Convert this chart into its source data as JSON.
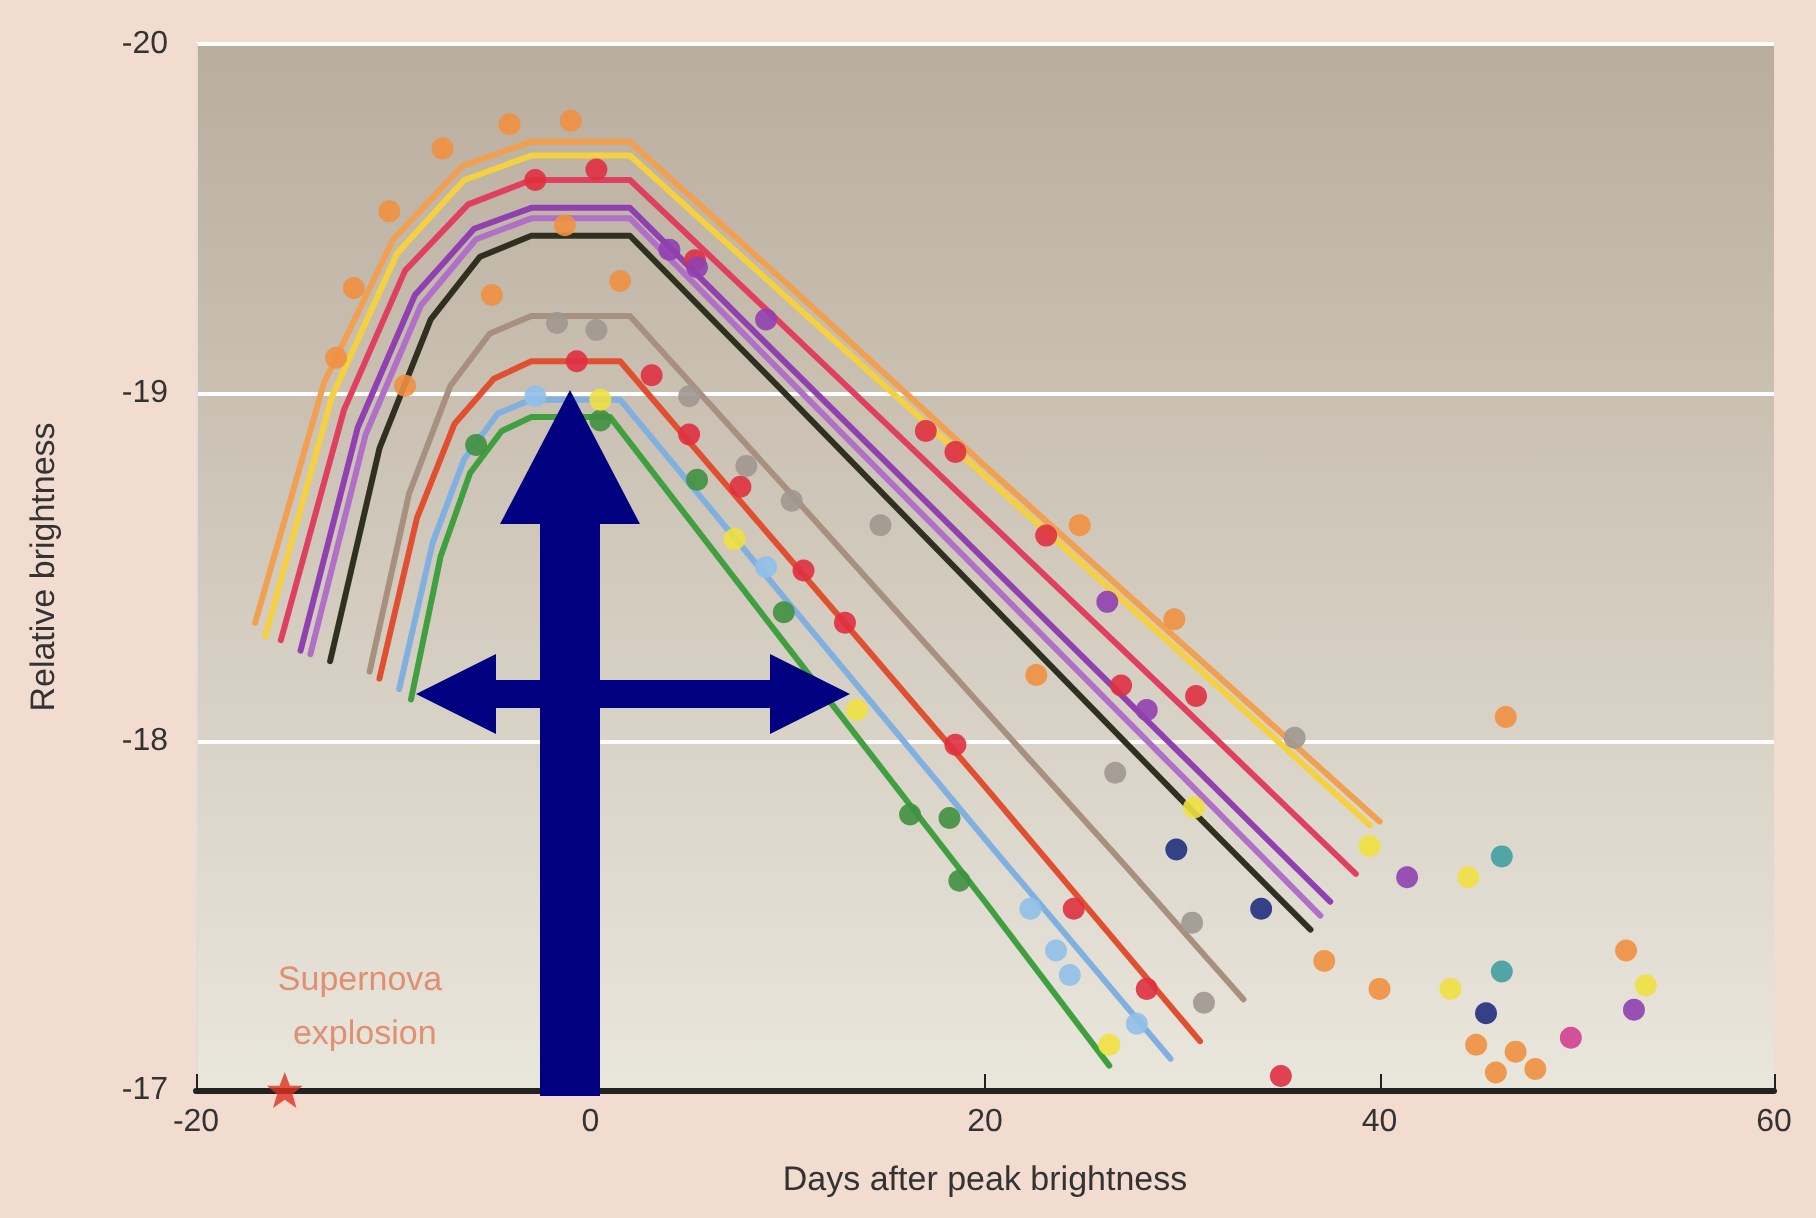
{
  "chart_data": {
    "type": "line",
    "xlabel": "Days after peak brightness",
    "ylabel": "Relative brightness",
    "xlim": [
      -20,
      60
    ],
    "xticks": [
      -20,
      0,
      20,
      40,
      60
    ],
    "ylim": [
      -17,
      -20
    ],
    "yticks": [
      -20,
      -19,
      -18,
      -17
    ],
    "grid": "y",
    "annotations": [
      {
        "text": "Supernova explosion",
        "x": -15.5,
        "y": -17
      }
    ],
    "series": [
      {
        "marker": "none",
        "color": "#f0a050",
        "x": [
          -17,
          -13.5,
          -10,
          -6.5,
          -3,
          2,
          10,
          20,
          30,
          40
        ],
        "values": [
          -18.34,
          -19.03,
          -19.44,
          -19.65,
          -19.72,
          -19.72,
          -19.31,
          -18.79,
          -18.28,
          -17.77
        ]
      },
      {
        "marker": "none",
        "color": "#f5d040",
        "x": [
          -16.5,
          -13.1,
          -9.8,
          -6.4,
          -3,
          2,
          10,
          20,
          30,
          39.5
        ],
        "values": [
          -18.3,
          -18.99,
          -19.4,
          -19.61,
          -19.68,
          -19.68,
          -19.27,
          -18.76,
          -18.25,
          -17.76
        ]
      },
      {
        "marker": "none",
        "color": "#e04060",
        "x": [
          -15.7,
          -12.5,
          -9.4,
          -6.2,
          -3,
          2,
          10,
          20,
          30,
          38.8
        ],
        "values": [
          -18.29,
          -18.95,
          -19.35,
          -19.54,
          -19.61,
          -19.61,
          -19.18,
          -18.64,
          -18.1,
          -17.62
        ]
      },
      {
        "marker": "none",
        "color": "#9040b0",
        "x": [
          -14.7,
          -11.8,
          -8.9,
          -5.9,
          -3,
          2,
          10,
          20,
          30,
          37.5
        ],
        "values": [
          -18.26,
          -18.9,
          -19.28,
          -19.47,
          -19.53,
          -19.53,
          -19.08,
          -18.52,
          -17.96,
          -17.54
        ]
      },
      {
        "marker": "none",
        "color": "#b070c8",
        "x": [
          -14.2,
          -11.4,
          -8.6,
          -5.8,
          -3,
          2,
          10,
          20,
          30,
          37
        ],
        "values": [
          -18.25,
          -18.88,
          -19.25,
          -19.44,
          -19.5,
          -19.5,
          -19.04,
          -18.47,
          -17.9,
          -17.5
        ]
      },
      {
        "marker": "none",
        "color": "#303020",
        "x": [
          -13.2,
          -10.7,
          -8.1,
          -5.6,
          -3,
          2,
          10,
          20,
          30,
          36.5
        ],
        "values": [
          -18.23,
          -18.84,
          -19.21,
          -19.39,
          -19.45,
          -19.45,
          -18.99,
          -18.41,
          -17.83,
          -17.46
        ]
      },
      {
        "marker": "none",
        "color": "#a89080",
        "x": [
          -11.2,
          -9.2,
          -7.1,
          -5.1,
          -3,
          2,
          10,
          20,
          27,
          33.1
        ],
        "values": [
          -18.2,
          -18.71,
          -19.02,
          -19.17,
          -19.22,
          -19.22,
          -18.72,
          -18.09,
          -17.65,
          -17.26
        ]
      },
      {
        "marker": "none",
        "color": "#e05030",
        "x": [
          -10.7,
          -8.8,
          -6.9,
          -4.9,
          -3,
          1.5,
          10,
          20,
          30.9
        ],
        "values": [
          -18.18,
          -18.64,
          -18.91,
          -19.04,
          -19.09,
          -19.09,
          -18.53,
          -17.87,
          -17.14
        ]
      },
      {
        "marker": "none",
        "color": "#80b0e0",
        "x": [
          -9.7,
          -8,
          -6.4,
          -4.7,
          -3,
          1.5,
          10,
          20,
          29.4
        ],
        "values": [
          -18.15,
          -18.57,
          -18.81,
          -18.94,
          -18.98,
          -18.98,
          -18.4,
          -17.72,
          -17.09
        ]
      },
      {
        "marker": "none",
        "color": "#40a040",
        "x": [
          -9.1,
          -7.6,
          -6.1,
          -4.5,
          -3,
          1,
          10,
          20,
          26.3
        ],
        "values": [
          -18.12,
          -18.53,
          -18.77,
          -18.89,
          -18.93,
          -18.93,
          -18.27,
          -17.54,
          -17.07
        ]
      },
      {
        "type": "scatter",
        "marker": "circle",
        "color": "#f09040",
        "x": [
          -12.9,
          -12,
          -10.2,
          -7.5,
          -4.1,
          -1,
          -9.4,
          -5,
          -1.3,
          1.5,
          22.6,
          24.8,
          29.6,
          37.2,
          40,
          46.4,
          44.9,
          45.9,
          46.9,
          47.9,
          52.5
        ],
        "values": [
          -19.1,
          -19.3,
          -19.52,
          -19.7,
          -19.77,
          -19.78,
          -19.02,
          -19.28,
          -19.48,
          -19.32,
          -18.19,
          -18.62,
          -18.35,
          -17.37,
          -17.29,
          -18.07,
          -17.13,
          -17.05,
          -17.11,
          -17.06,
          -17.4
        ]
      },
      {
        "type": "scatter",
        "marker": "circle",
        "color": "#e03040",
        "x": [
          -2.8,
          0.3,
          5.3,
          17,
          18.5,
          23.1,
          26.9,
          30.7,
          -0.7,
          3.1,
          5,
          7.6,
          10.8,
          12.9,
          18.5,
          24.5,
          28.2,
          35
        ],
        "values": [
          -19.61,
          -19.64,
          -19.38,
          -18.89,
          -18.83,
          -18.59,
          -18.16,
          -18.13,
          -19.09,
          -19.05,
          -18.88,
          -18.73,
          -18.49,
          -18.34,
          -17.99,
          -17.52,
          -17.29,
          -17.04
        ]
      },
      {
        "type": "scatter",
        "marker": "circle",
        "color": "#9040b0",
        "x": [
          4,
          5.4,
          8.9,
          26.2,
          28.2,
          41.4,
          52.9
        ],
        "values": [
          -19.41,
          -19.36,
          -19.21,
          -18.4,
          -18.09,
          -17.61,
          -17.23
        ]
      },
      {
        "type": "scatter",
        "marker": "circle",
        "color": "#a09890",
        "x": [
          -1.7,
          0.3,
          5,
          7.9,
          10.2,
          14.7,
          26.6,
          30.5,
          31.1,
          35.7
        ],
        "values": [
          -19.2,
          -19.18,
          -18.99,
          -18.79,
          -18.69,
          -18.62,
          -17.91,
          -17.48,
          -17.25,
          -18.01
        ]
      },
      {
        "type": "scatter",
        "marker": "circle",
        "color": "#90c0e8",
        "x": [
          -2.8,
          8.9,
          22.3,
          23.6,
          24.3,
          27.7
        ],
        "values": [
          -18.99,
          -18.5,
          -17.52,
          -17.4,
          -17.33,
          -17.19
        ]
      },
      {
        "type": "scatter",
        "marker": "circle",
        "color": "#409040",
        "x": [
          -5.8,
          0.5,
          5.4,
          9.8,
          16.2,
          18.2,
          18.7
        ],
        "values": [
          -18.85,
          -18.92,
          -18.75,
          -18.37,
          -17.79,
          -17.78,
          -17.6
        ]
      },
      {
        "type": "scatter",
        "marker": "circle",
        "color": "#f0e040",
        "x": [
          0.5,
          7.3,
          13.5,
          26.3,
          30.6,
          39.5,
          44.5,
          43.6,
          53.5
        ],
        "values": [
          -18.98,
          -18.58,
          -18.09,
          -17.13,
          -17.81,
          -17.7,
          -17.61,
          -17.29,
          -17.3
        ]
      },
      {
        "type": "scatter",
        "marker": "circle",
        "color": "#203080",
        "x": [
          29.7,
          34,
          45.4
        ],
        "values": [
          -17.69,
          -17.52,
          -17.22
        ]
      },
      {
        "type": "scatter",
        "marker": "circle",
        "color": "#40a0a0",
        "x": [
          46.2,
          46.2
        ],
        "values": [
          -17.67,
          -17.34
        ]
      },
      {
        "type": "scatter",
        "marker": "circle",
        "color": "#d04090",
        "x": [
          49.7
        ],
        "values": [
          -17.15
        ]
      }
    ]
  }
}
